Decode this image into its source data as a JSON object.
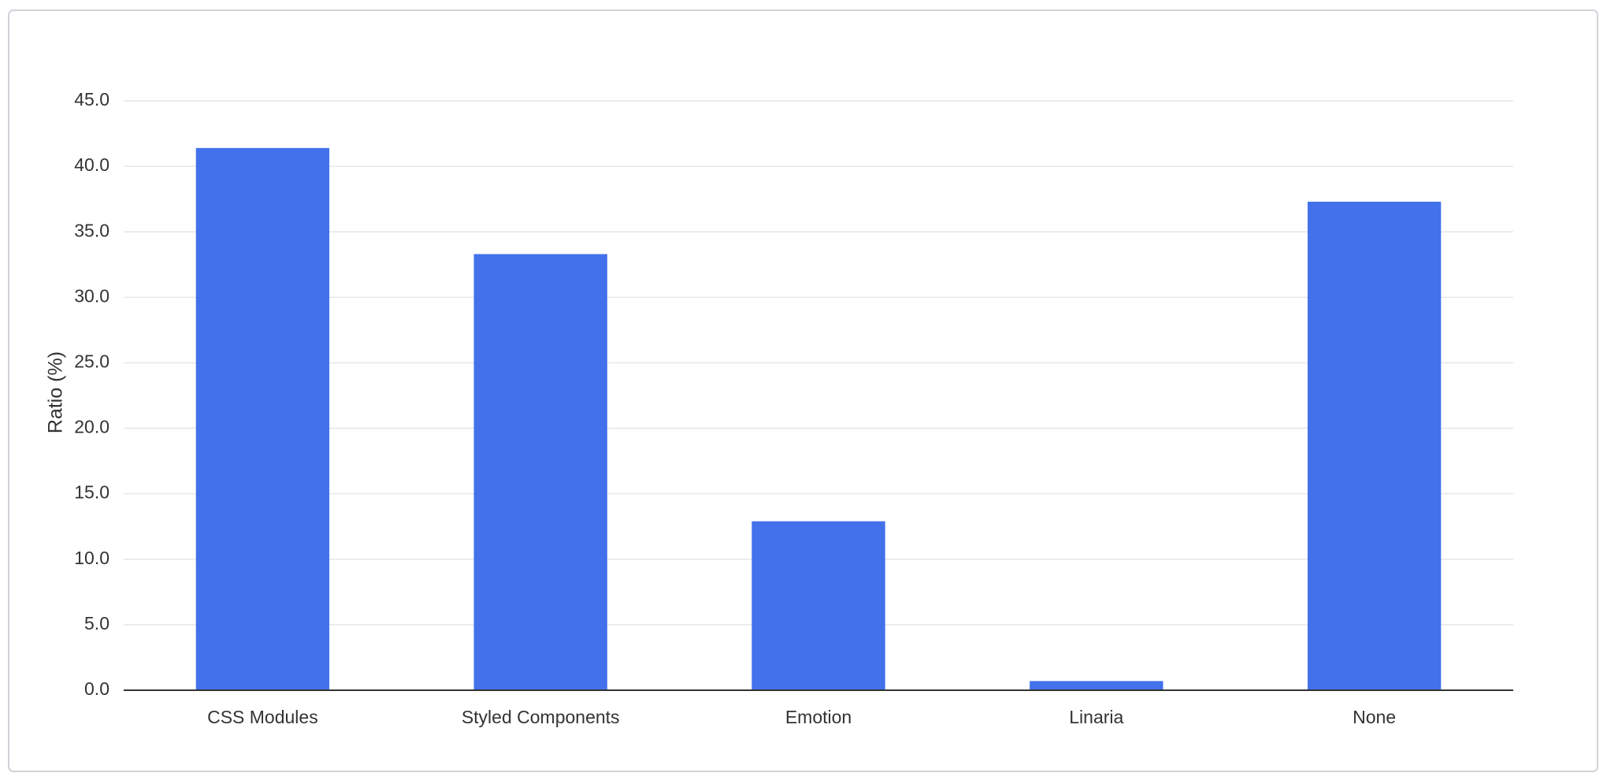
{
  "chart_data": {
    "type": "bar",
    "y_label": "Ratio (%)",
    "categories": [
      "CSS Modules",
      "Styled Components",
      "Emotion",
      "Linaria",
      "None"
    ],
    "values": [
      41.4,
      33.3,
      12.9,
      0.7,
      37.3
    ],
    "color": "#4271eb",
    "ylim": [
      0,
      45
    ],
    "yticks": [
      {
        "value": 0,
        "label": "0.0"
      },
      {
        "value": 5,
        "label": "5.0"
      },
      {
        "value": 10,
        "label": "10.0"
      },
      {
        "value": 15,
        "label": "15.0"
      },
      {
        "value": 20,
        "label": "20.0"
      },
      {
        "value": 25,
        "label": "25.0"
      },
      {
        "value": 30,
        "label": "30.0"
      },
      {
        "value": 35,
        "label": "35.0"
      },
      {
        "value": 40,
        "label": "40.0"
      },
      {
        "value": 45,
        "label": "45.0"
      }
    ],
    "grid": true
  }
}
